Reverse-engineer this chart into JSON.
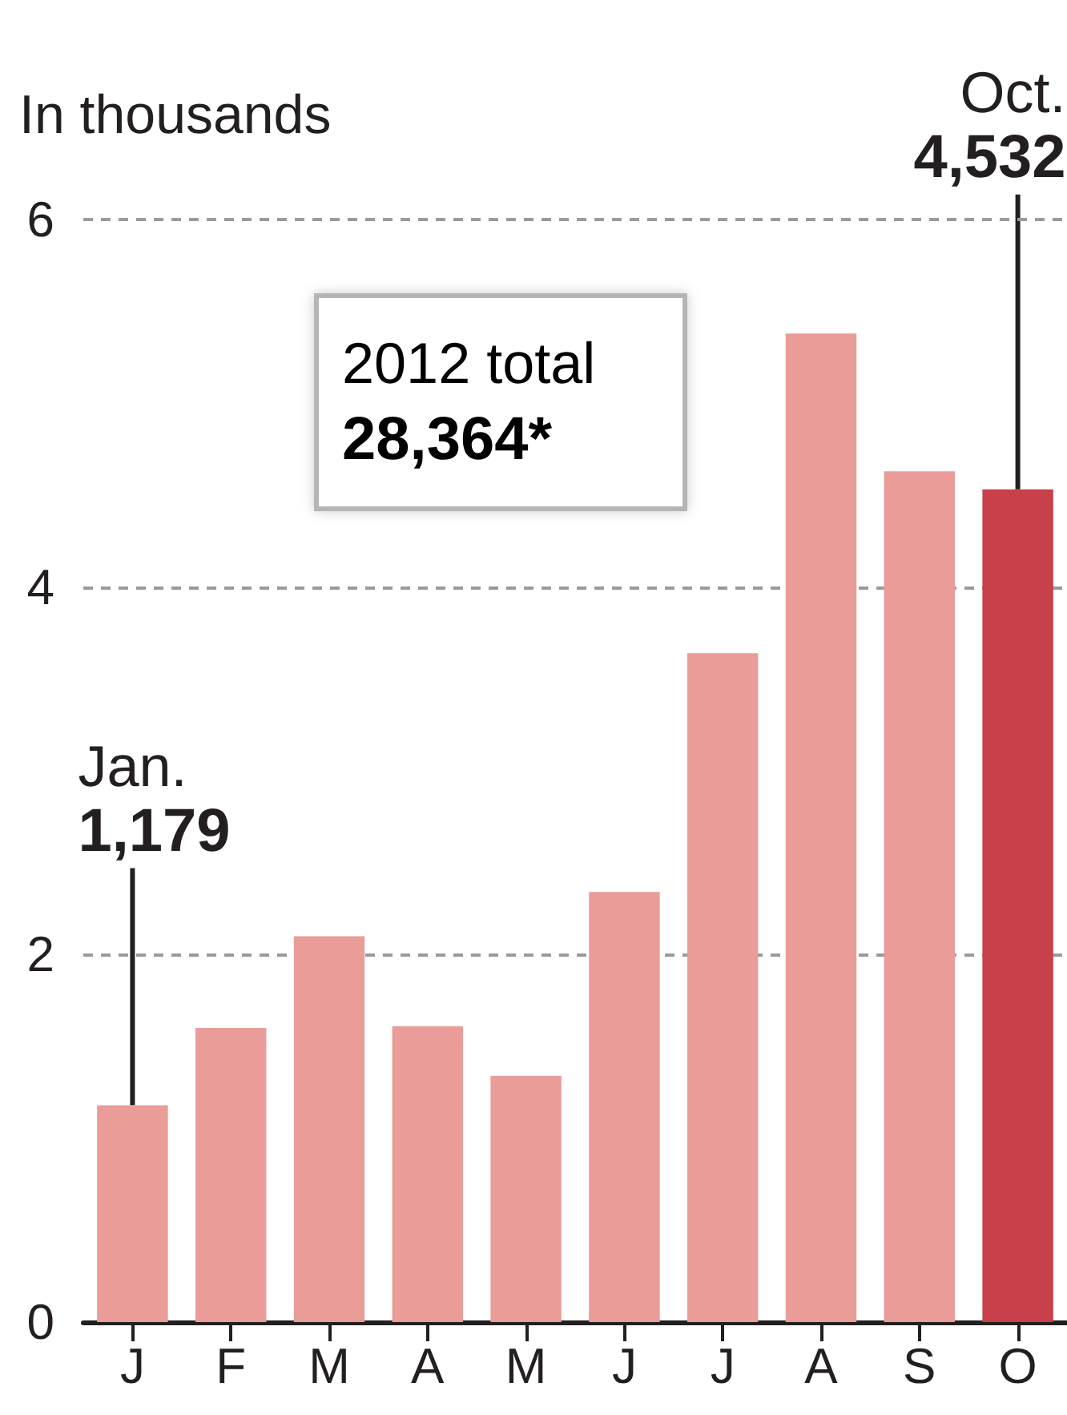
{
  "chart_data": {
    "type": "bar",
    "ylabel": "In thousands",
    "categories": [
      "J",
      "F",
      "M",
      "A",
      "M",
      "J",
      "J",
      "A",
      "S",
      "O"
    ],
    "values": [
      1.179,
      1.6,
      2.1,
      1.61,
      1.34,
      2.34,
      3.64,
      5.38,
      4.63,
      4.532
    ],
    "colors": [
      "#e99c98",
      "#e99c98",
      "#e99c98",
      "#e99c98",
      "#e99c98",
      "#e99c98",
      "#e99c98",
      "#e99c98",
      "#e99c98",
      "#c8404a"
    ],
    "value_labels": [
      "Jan.\n1,179",
      null,
      null,
      null,
      null,
      null,
      null,
      null,
      null,
      "Oct.\n4,532"
    ],
    "ylim": [
      0,
      6
    ],
    "yticks": [
      0,
      2,
      4,
      6
    ],
    "grid": "y",
    "annotations": [
      "2012 total\n28,364*"
    ]
  }
}
